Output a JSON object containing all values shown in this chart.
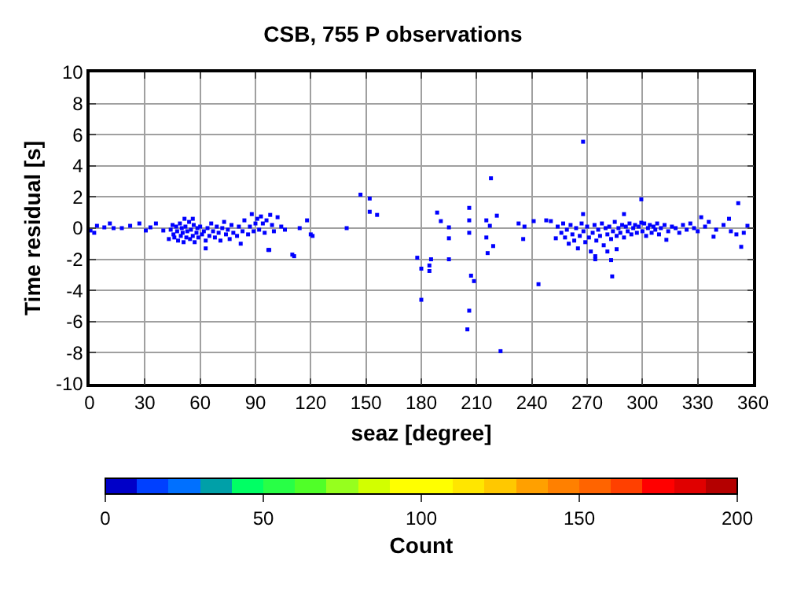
{
  "chart_data": {
    "type": "scatter",
    "title": "CSB, 755 P observations",
    "xlabel": "seaz [degree]",
    "ylabel": "Time residual [s]",
    "clabel": "Count",
    "xlim": [
      0,
      360
    ],
    "xticks": [
      0,
      30,
      60,
      90,
      120,
      150,
      180,
      210,
      240,
      270,
      300,
      330,
      360
    ],
    "ylim": [
      -10,
      10
    ],
    "yticks": [
      -10,
      -8,
      -6,
      -4,
      -2,
      0,
      2,
      4,
      6,
      8,
      10
    ],
    "clim": [
      0,
      200
    ],
    "cticks": [
      0,
      50,
      100,
      150,
      200
    ],
    "grid": true,
    "marker": "square",
    "series": [
      {
        "color": "#0000ff",
        "x": [
          0.5,
          2.5,
          4,
          8,
          11,
          13,
          17.5,
          22,
          27,
          30.5,
          33,
          36,
          40,
          43,
          44,
          45,
          45.5,
          46,
          47,
          47.5,
          48,
          49,
          49.5,
          50,
          50.5,
          51,
          51.5,
          52,
          52.5,
          53,
          54,
          54.5,
          55,
          56,
          56,
          56.5,
          57,
          58,
          58.5,
          59,
          60,
          61,
          62,
          63,
          63,
          64,
          65,
          66,
          67,
          68,
          69,
          70,
          71,
          72,
          73,
          74,
          75,
          76,
          77,
          78,
          80,
          81,
          82,
          83,
          84,
          86,
          87,
          88,
          89,
          90,
          91,
          92,
          93,
          94,
          95,
          96,
          97,
          97.5,
          98,
          99,
          100,
          102,
          104,
          106,
          110,
          111,
          114,
          118,
          120,
          121,
          139.5,
          147,
          152,
          152,
          156,
          177.8,
          180,
          180,
          184.4,
          184.4,
          185.3,
          188.6,
          190.6,
          195,
          195,
          195,
          206,
          206,
          206,
          207,
          208.6,
          205,
          206,
          215.3,
          215.3,
          217.2,
          216,
          217.8,
          219,
          221,
          223,
          232.8,
          235.3,
          236,
          241,
          243.6,
          247.8,
          250.3,
          253,
          254,
          256,
          257,
          258,
          259,
          260,
          261,
          262,
          263,
          264,
          265,
          266,
          267,
          267.8,
          267.8,
          268,
          269,
          270,
          271,
          272,
          273,
          274,
          274.4,
          274.4,
          275,
          276,
          277,
          278,
          279,
          280,
          281,
          281,
          282,
          283,
          283,
          283.6,
          284,
          285,
          286,
          286,
          287,
          288,
          289,
          290,
          290,
          291,
          292,
          293,
          294,
          295,
          296,
          297,
          298,
          299.4,
          299.4,
          300,
          301,
          302,
          303,
          304,
          305,
          306,
          307,
          308,
          309,
          310,
          312,
          313,
          314,
          316,
          318,
          320,
          322,
          324,
          326,
          328,
          330,
          331.9,
          334,
          336,
          338.6,
          340,
          344,
          347,
          348,
          351,
          352,
          353.6,
          355,
          357
        ],
        "values": [
          -0.15,
          -0.3,
          0.15,
          0.05,
          0.3,
          0,
          0,
          0.15,
          0.3,
          -0.15,
          0.05,
          0.3,
          -0.15,
          -0.7,
          -0.1,
          0.2,
          -0.4,
          -0.6,
          0.1,
          -0.2,
          -0.8,
          0.3,
          -0.5,
          0,
          -0.3,
          -0.9,
          0.6,
          0.1,
          -0.6,
          -0.2,
          0.4,
          -0.7,
          -0.1,
          -0.5,
          0.6,
          0.2,
          -0.9,
          -0.3,
          0,
          -0.6,
          0.1,
          -0.4,
          -0.2,
          -0.8,
          -1.3,
          0,
          -0.5,
          0.3,
          -0.2,
          -0.6,
          0.1,
          -0.3,
          -0.8,
          0,
          0.4,
          -0.4,
          -0.1,
          -0.7,
          0.2,
          -0.3,
          -0.5,
          0.1,
          -1,
          -0.2,
          0.5,
          -0.4,
          0.1,
          0.9,
          -0.2,
          0.3,
          0.6,
          -0.1,
          0.75,
          0.3,
          -0.3,
          0.5,
          -1.4,
          -1.4,
          0.85,
          0.2,
          -0.2,
          0.7,
          0.1,
          -0.1,
          -1.7,
          -1.8,
          0,
          0.5,
          -0.4,
          -0.5,
          0,
          2.15,
          1.9,
          1.05,
          0.85,
          -1.9,
          -2.6,
          -4.6,
          -2.4,
          -2.75,
          -2,
          1,
          0.45,
          0.05,
          -0.65,
          -2,
          1.3,
          0.5,
          -0.3,
          -3.05,
          -3.4,
          -6.5,
          -5.3,
          0.5,
          -0.6,
          0.15,
          -1.6,
          3.2,
          -1.15,
          0.8,
          -7.9,
          0.3,
          -0.7,
          0.1,
          0.45,
          -3.6,
          0.5,
          0.45,
          -0.65,
          0.1,
          -0.3,
          0.3,
          -0.6,
          -0.1,
          -1,
          0.2,
          -0.4,
          -0.8,
          0,
          -1.3,
          -0.5,
          0.3,
          5.55,
          0.9,
          -0.2,
          -0.9,
          0.1,
          -0.6,
          -1.5,
          -0.3,
          0.2,
          -2,
          -1.8,
          -0.8,
          -0.1,
          -0.5,
          0.3,
          -1.1,
          0,
          -0.4,
          -1.5,
          0.1,
          -0.7,
          -2.05,
          -3.1,
          -0.2,
          0.4,
          -0.5,
          -1.35,
          0,
          -0.3,
          0.2,
          -0.6,
          0.9,
          0.1,
          -0.2,
          0.3,
          -0.4,
          0,
          0.2,
          -0.3,
          0.1,
          1.85,
          0.35,
          -0.2,
          0.3,
          -0.5,
          0,
          0.2,
          -0.3,
          0.1,
          -0.1,
          0.3,
          -0.4,
          0,
          0.2,
          -0.75,
          -0.2,
          0.1,
          0,
          -0.3,
          0.2,
          -0.1,
          0.3,
          0,
          -0.2,
          0.7,
          0.1,
          0.4,
          -0.55,
          -0.1,
          0.2,
          0.6,
          -0.2,
          -0.4,
          1.6,
          -1.2,
          -0.3,
          0.15
        ]
      }
    ]
  }
}
